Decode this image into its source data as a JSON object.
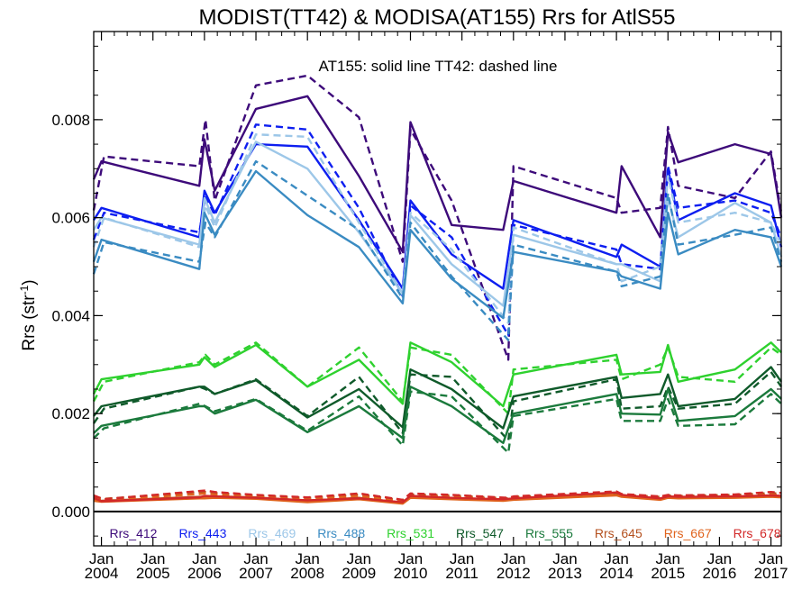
{
  "chart_data": {
    "type": "line",
    "title": "MODIST(TT42) & MODISA(AT155)  Rrs for AtlS55",
    "annotation": "AT155: solid line   TT42: dashed line",
    "ylabel": "Rrs (str",
    "ylabel_sup": "-1",
    "ylabel_end": ")",
    "ylim": [
      -0.0007,
      0.0098
    ],
    "xlim": [
      2003.85,
      2017.2
    ],
    "yticks": [
      {
        "v": 0.0,
        "label": "0.000"
      },
      {
        "v": 0.002,
        "label": "0.002"
      },
      {
        "v": 0.004,
        "label": "0.004"
      },
      {
        "v": 0.006,
        "label": "0.006"
      },
      {
        "v": 0.008,
        "label": "0.008"
      }
    ],
    "xticks": [
      {
        "x": 2004,
        "month": "Jan",
        "year": "2004"
      },
      {
        "x": 2005,
        "month": "Jan",
        "year": "2005"
      },
      {
        "x": 2006,
        "month": "Jan",
        "year": "2006"
      },
      {
        "x": 2007,
        "month": "Jan",
        "year": "2007"
      },
      {
        "x": 2008,
        "month": "Jan",
        "year": "2008"
      },
      {
        "x": 2009,
        "month": "Jan",
        "year": "2009"
      },
      {
        "x": 2010,
        "month": "Jan",
        "year": "2010"
      },
      {
        "x": 2011,
        "month": "Jan",
        "year": "2011"
      },
      {
        "x": 2012,
        "month": "Jan",
        "year": "2012"
      },
      {
        "x": 2013,
        "month": "Jan",
        "year": "2013"
      },
      {
        "x": 2014,
        "month": "Jan",
        "year": "2014"
      },
      {
        "x": 2015,
        "month": "Jan",
        "year": "2015"
      },
      {
        "x": 2016,
        "month": "Jan",
        "year": "2016"
      },
      {
        "x": 2017,
        "month": "Jan",
        "year": "2017"
      }
    ],
    "grid": false,
    "legend_placement": "bottom",
    "x_solid": [
      2003.85,
      2004.0,
      2005.9,
      2006.0,
      2006.2,
      2007.0,
      2008.0,
      2009.0,
      2009.85,
      2010.0,
      2010.8,
      2011.8,
      2012.0,
      2014.0,
      2014.1,
      2014.85,
      2015.0,
      2015.2,
      2016.3,
      2017.0,
      2017.2
    ],
    "x_dashed": [
      2003.85,
      2004.05,
      2005.9,
      2006.02,
      2006.2,
      2007.0,
      2008.0,
      2009.0,
      2009.85,
      2010.0,
      2010.8,
      2011.9,
      2012.0,
      2014.0,
      2014.1,
      2014.85,
      2015.0,
      2015.2,
      2016.3,
      2017.0,
      2017.2
    ],
    "series": [
      {
        "name": "Rrs_412",
        "color": "#3d0a7a",
        "solid": [
          0.00678,
          0.00715,
          0.00665,
          0.0076,
          0.00655,
          0.00822,
          0.00848,
          0.00685,
          0.0053,
          0.00795,
          0.00585,
          0.00575,
          0.00675,
          0.0061,
          0.00705,
          0.0056,
          0.00775,
          0.00713,
          0.0075,
          0.0073,
          0.006
        ],
        "dashed": [
          0.00615,
          0.00725,
          0.00705,
          0.008,
          0.00635,
          0.0087,
          0.0089,
          0.00805,
          0.0051,
          0.0078,
          0.00635,
          0.0031,
          0.00705,
          0.0064,
          0.0061,
          0.0062,
          0.00785,
          0.00665,
          0.0064,
          0.00735,
          0.0061
        ]
      },
      {
        "name": "Rrs_443",
        "color": "#0d1ef0",
        "solid": [
          0.00595,
          0.0062,
          0.0056,
          0.00655,
          0.0061,
          0.0075,
          0.00745,
          0.00595,
          0.00455,
          0.00635,
          0.00525,
          0.00455,
          0.00595,
          0.0052,
          0.00545,
          0.005,
          0.007,
          0.00595,
          0.0065,
          0.00625,
          0.0054
        ],
        "dashed": [
          0.00555,
          0.0061,
          0.0057,
          0.00645,
          0.00605,
          0.0079,
          0.0078,
          0.0062,
          0.0044,
          0.00625,
          0.0056,
          0.0036,
          0.00585,
          0.00535,
          0.00505,
          0.00495,
          0.00705,
          0.0062,
          0.00635,
          0.0061,
          0.0056
        ]
      },
      {
        "name": "Rrs_469",
        "color": "#9dc7e8",
        "solid": [
          0.00575,
          0.006,
          0.00545,
          0.0064,
          0.0059,
          0.00755,
          0.007,
          0.0057,
          0.00445,
          0.00605,
          0.00505,
          0.0042,
          0.00565,
          0.00505,
          0.00505,
          0.0047,
          0.0064,
          0.0056,
          0.0063,
          0.0059,
          0.0052
        ],
        "dashed": [
          0.0054,
          0.006,
          0.0054,
          0.00625,
          0.0058,
          0.0077,
          0.00765,
          0.0059,
          0.00445,
          0.0061,
          0.00535,
          0.00385,
          0.0058,
          0.00505,
          0.0047,
          0.005,
          0.00685,
          0.0059,
          0.0061,
          0.0059,
          0.00545
        ]
      },
      {
        "name": "Rrs_488",
        "color": "#3a8bc2",
        "solid": [
          0.0051,
          0.00555,
          0.00495,
          0.0061,
          0.00565,
          0.00695,
          0.00605,
          0.0054,
          0.00425,
          0.00575,
          0.00475,
          0.00395,
          0.0053,
          0.0049,
          0.0048,
          0.00455,
          0.0061,
          0.00525,
          0.00575,
          0.0056,
          0.005
        ],
        "dashed": [
          0.00485,
          0.0055,
          0.0051,
          0.0059,
          0.0056,
          0.00715,
          0.00645,
          0.00575,
          0.00435,
          0.0059,
          0.0048,
          0.0035,
          0.00545,
          0.0049,
          0.0046,
          0.0048,
          0.0065,
          0.00545,
          0.00565,
          0.0058,
          0.0051
        ]
      },
      {
        "name": "Rrs_531",
        "color": "#2ed12e",
        "solid": [
          0.0024,
          0.0027,
          0.003,
          0.00315,
          0.00295,
          0.0034,
          0.00255,
          0.0031,
          0.0022,
          0.00345,
          0.00305,
          0.00215,
          0.0028,
          0.0032,
          0.0028,
          0.00285,
          0.0034,
          0.00265,
          0.0029,
          0.00345,
          0.00325
        ],
        "dashed": [
          0.00225,
          0.00265,
          0.00305,
          0.0032,
          0.003,
          0.00345,
          0.00255,
          0.00335,
          0.00225,
          0.00335,
          0.0032,
          0.002,
          0.0029,
          0.0031,
          0.0027,
          0.003,
          0.00335,
          0.00275,
          0.00265,
          0.00335,
          0.0032
        ]
      },
      {
        "name": "Rrs_547",
        "color": "#0f5a2a",
        "solid": [
          0.00195,
          0.00215,
          0.00255,
          0.00255,
          0.0024,
          0.00268,
          0.00192,
          0.0025,
          0.00172,
          0.0029,
          0.0025,
          0.0017,
          0.00235,
          0.00275,
          0.00232,
          0.0024,
          0.0028,
          0.00215,
          0.0023,
          0.00295,
          0.00265
        ],
        "dashed": [
          0.0018,
          0.0021,
          0.00255,
          0.0025,
          0.0024,
          0.0027,
          0.00195,
          0.00275,
          0.0016,
          0.0028,
          0.00275,
          0.00145,
          0.00225,
          0.0027,
          0.0021,
          0.00215,
          0.00255,
          0.0021,
          0.0022,
          0.00285,
          0.00255
        ]
      },
      {
        "name": "Rrs_555",
        "color": "#1b7a3c",
        "solid": [
          0.0016,
          0.00175,
          0.00215,
          0.00215,
          0.002,
          0.00228,
          0.00162,
          0.00215,
          0.0015,
          0.00255,
          0.00215,
          0.0014,
          0.002,
          0.0024,
          0.002,
          0.00198,
          0.0025,
          0.00185,
          0.00195,
          0.0025,
          0.0023
        ],
        "dashed": [
          0.0015,
          0.0017,
          0.0022,
          0.00215,
          0.00205,
          0.0023,
          0.00165,
          0.00235,
          0.00135,
          0.00245,
          0.00235,
          0.0012,
          0.00195,
          0.0023,
          0.00185,
          0.00185,
          0.0023,
          0.00175,
          0.00178,
          0.0024,
          0.0022
        ]
      },
      {
        "name": "Rrs_645",
        "color": "#b4501e",
        "solid": [
          0.00025,
          0.00022,
          0.0003,
          0.0003,
          0.00031,
          0.00029,
          0.00022,
          0.00028,
          0.00018,
          0.0003,
          0.00027,
          0.00024,
          0.00026,
          0.00036,
          0.00032,
          0.00026,
          0.0003,
          0.00029,
          0.0003,
          0.00032,
          0.00031
        ],
        "dashed": [
          0.0003,
          0.00026,
          0.0004,
          0.0004,
          0.00038,
          0.00033,
          0.00028,
          0.00035,
          0.00023,
          0.00035,
          0.00033,
          0.00027,
          0.0003,
          0.00038,
          0.00034,
          0.0003,
          0.00033,
          0.00032,
          0.00034,
          0.00038,
          0.00036
        ]
      },
      {
        "name": "Rrs_667",
        "color": "#e0641e",
        "solid": [
          0.00022,
          0.0002,
          0.00027,
          0.00027,
          0.00028,
          0.00026,
          0.00019,
          0.00025,
          0.00016,
          0.00028,
          0.00025,
          0.00022,
          0.00024,
          0.00033,
          0.0003,
          0.00024,
          0.00028,
          0.00027,
          0.00028,
          0.0003,
          0.00029
        ],
        "dashed": [
          0.00027,
          0.00023,
          0.00036,
          0.00037,
          0.00035,
          0.0003,
          0.00025,
          0.00032,
          0.00021,
          0.00032,
          0.0003,
          0.00025,
          0.00028,
          0.00035,
          0.00031,
          0.00027,
          0.0003,
          0.0003,
          0.00031,
          0.00035,
          0.00033
        ]
      },
      {
        "name": "Rrs_678",
        "color": "#d22828",
        "solid": [
          0.00028,
          0.00021,
          0.00029,
          0.00032,
          0.00031,
          0.00028,
          0.00023,
          0.00027,
          0.00019,
          0.00032,
          0.00028,
          0.00025,
          0.00027,
          0.00039,
          0.00034,
          0.00027,
          0.00031,
          0.0003,
          0.00031,
          0.00033,
          0.00032
        ],
        "dashed": [
          0.00033,
          0.00025,
          0.00042,
          0.00043,
          0.0004,
          0.00034,
          0.00029,
          0.00037,
          0.00024,
          0.00037,
          0.00034,
          0.00028,
          0.00031,
          0.00041,
          0.00036,
          0.00031,
          0.00034,
          0.00033,
          0.00035,
          0.0004,
          0.00038
        ]
      }
    ]
  }
}
